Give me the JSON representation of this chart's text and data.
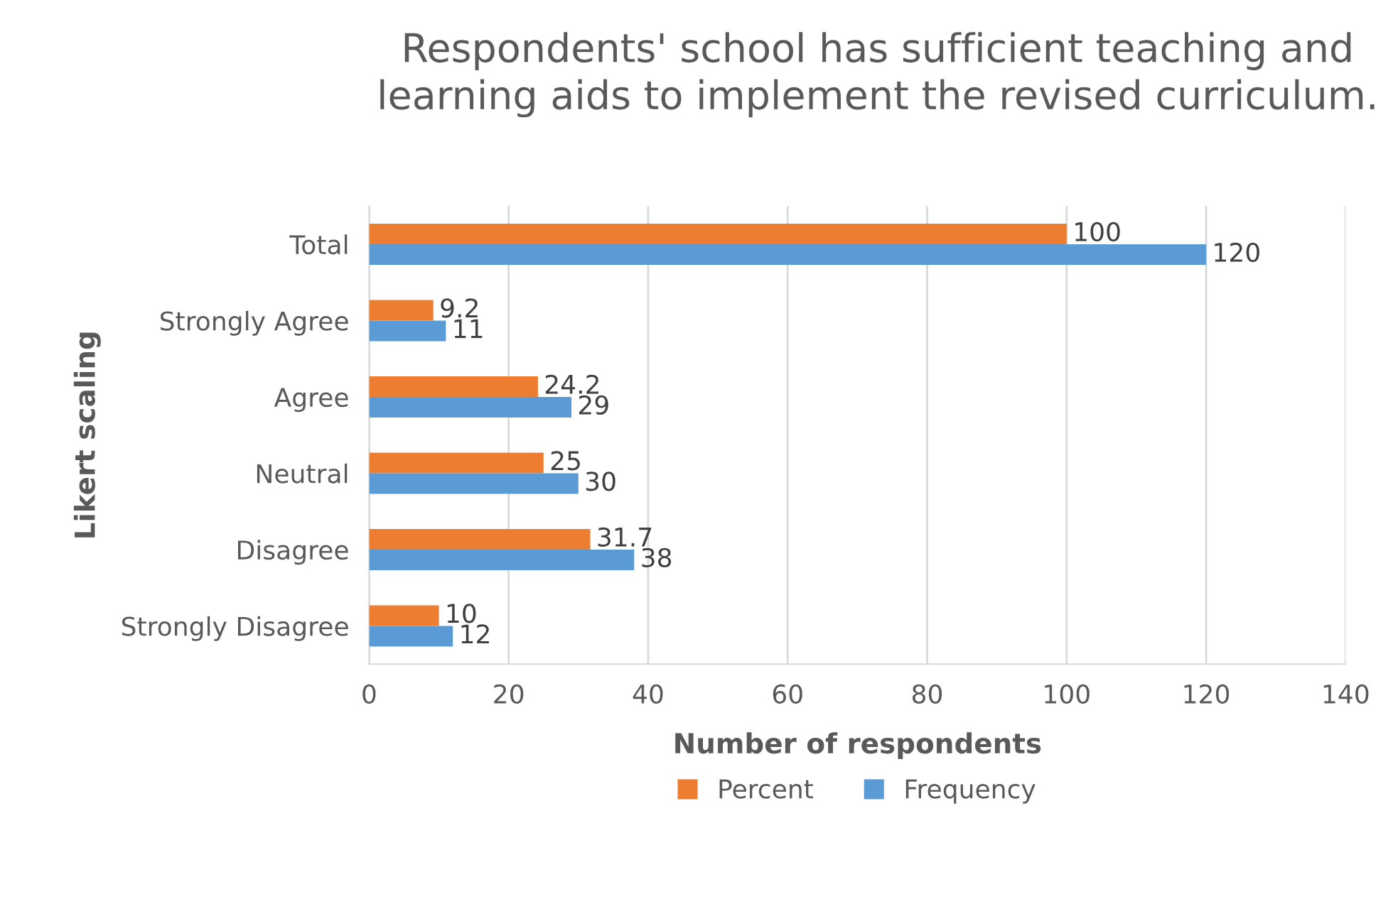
{
  "chart_data": {
    "type": "bar",
    "orientation": "horizontal",
    "title": "Respondents' school has sufficient teaching and\nlearning aids to implement the revised curriculum.",
    "xlabel": "Number of respondents",
    "ylabel": "Likert scaling",
    "categories": [
      "Total",
      "Strongly Agree",
      "Agree",
      "Neutral",
      "Disagree",
      "Strongly Disagree"
    ],
    "series": [
      {
        "name": "Percent",
        "color": "#ed7d31",
        "values": [
          100,
          9.2,
          24.2,
          25,
          31.7,
          10
        ]
      },
      {
        "name": "Frequency",
        "color": "#5b9bd5",
        "values": [
          120,
          11,
          29,
          30,
          38,
          12
        ]
      }
    ],
    "xlim": [
      0,
      140
    ],
    "xticks": [
      0,
      20,
      40,
      60,
      80,
      100,
      120,
      140
    ],
    "grid": "x",
    "legend": "bottom",
    "data_labels": true
  }
}
